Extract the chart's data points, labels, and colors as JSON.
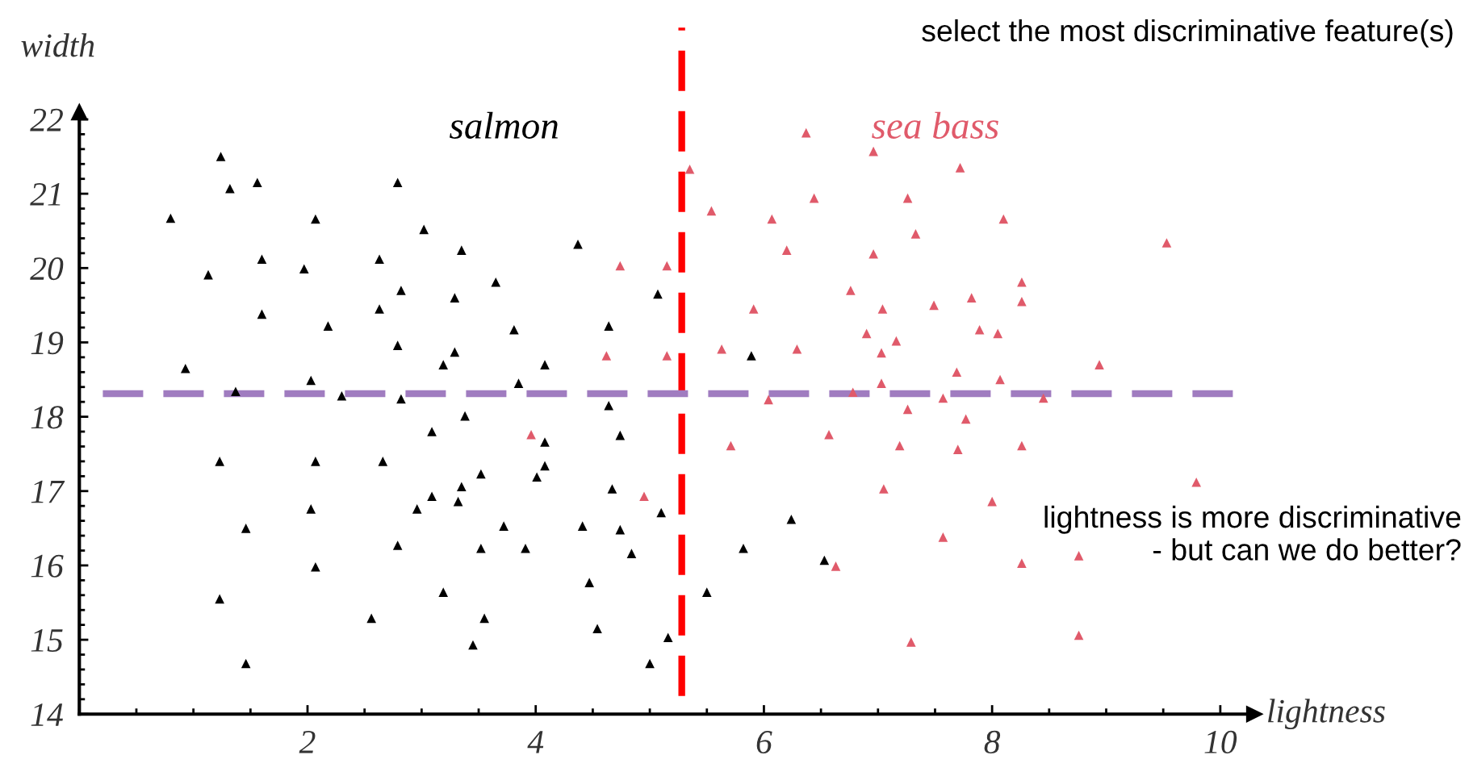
{
  "chart_data": {
    "type": "scatter",
    "title": "select the most discriminative feature(s)",
    "xlabel": "lightness",
    "ylabel": "width",
    "xlim": [
      0,
      10.3
    ],
    "ylim": [
      14,
      22.1
    ],
    "xticks": [
      2,
      4,
      6,
      8,
      10
    ],
    "yticks": [
      14,
      15,
      16,
      17,
      18,
      19,
      20,
      21,
      22
    ],
    "grid": false,
    "legend": false,
    "marker": "triangle",
    "series": [
      {
        "name": "salmon",
        "color": "#000000",
        "x": [
          1.24,
          1.32,
          1.56,
          0.8,
          1.13,
          1.6,
          1.6,
          0.93,
          1.37,
          1.23,
          1.46,
          1.23,
          1.46,
          1.97,
          2.07,
          2.18,
          2.03,
          2.3,
          2.07,
          2.03,
          2.07,
          2.56,
          2.63,
          2.63,
          2.79,
          2.82,
          2.79,
          2.82,
          2.66,
          2.79,
          3.02,
          3.09,
          2.96,
          3.09,
          3.19,
          3.35,
          3.29,
          3.29,
          3.19,
          3.38,
          3.35,
          3.32,
          3.52,
          3.52,
          3.55,
          3.45,
          3.65,
          3.81,
          3.85,
          3.72,
          3.91,
          4.08,
          4.08,
          4.08,
          4.01,
          4.37,
          4.64,
          4.64,
          4.74,
          4.67,
          4.41,
          4.74,
          4.84,
          4.47,
          4.54,
          5.07,
          5.1,
          5.16,
          5.0,
          5.89,
          5.82,
          5.5,
          6.24,
          6.53
        ],
        "values": [
          21.5,
          21.07,
          21.15,
          20.67,
          19.91,
          20.12,
          19.38,
          18.65,
          18.34,
          17.4,
          16.5,
          15.55,
          14.68,
          19.99,
          20.66,
          19.22,
          18.49,
          18.28,
          17.4,
          16.76,
          15.98,
          15.29,
          20.12,
          19.45,
          21.15,
          19.7,
          18.96,
          18.24,
          17.4,
          16.27,
          20.52,
          17.8,
          16.76,
          16.93,
          15.64,
          20.24,
          19.6,
          18.87,
          18.7,
          18.01,
          17.06,
          16.86,
          17.23,
          16.23,
          15.29,
          14.93,
          19.81,
          19.17,
          18.45,
          16.53,
          16.23,
          18.7,
          17.66,
          17.34,
          17.19,
          20.32,
          19.22,
          18.15,
          17.75,
          17.03,
          16.53,
          16.48,
          16.16,
          15.77,
          15.15,
          19.65,
          16.71,
          15.03,
          14.68,
          18.82,
          16.23,
          15.64,
          16.62,
          16.07
        ]
      },
      {
        "name": "sea bass",
        "color": "#e05a6a",
        "x": [
          5.35,
          6.37,
          5.54,
          6.07,
          6.44,
          6.2,
          6.96,
          7.72,
          7.26,
          7.33,
          8.1,
          6.96,
          9.53,
          6.76,
          7.04,
          6.9,
          7.16,
          7.03,
          7.49,
          7.82,
          7.89,
          8.05,
          8.26,
          8.26,
          5.91,
          5.63,
          6.29,
          4.74,
          5.15,
          4.62,
          5.15,
          7.03,
          7.69,
          8.07,
          8.94,
          6.04,
          6.78,
          7.57,
          8.45,
          7.26,
          7.77,
          6.57,
          5.71,
          7.19,
          7.7,
          8.26,
          3.96,
          9.79,
          7.05,
          8.0,
          4.95,
          7.57,
          6.63,
          8.26,
          8.76,
          7.29,
          8.76
        ],
        "values": [
          21.33,
          21.82,
          20.77,
          20.66,
          20.94,
          20.24,
          21.57,
          21.35,
          20.94,
          20.46,
          20.66,
          20.19,
          20.34,
          19.7,
          19.45,
          19.12,
          19.02,
          18.86,
          19.5,
          19.6,
          19.17,
          19.12,
          19.81,
          19.55,
          19.45,
          18.91,
          18.91,
          20.03,
          20.03,
          18.82,
          18.82,
          18.45,
          18.6,
          18.5,
          18.7,
          18.23,
          18.33,
          18.25,
          18.25,
          18.1,
          17.97,
          17.76,
          17.61,
          17.61,
          17.56,
          17.61,
          17.76,
          17.12,
          17.03,
          16.86,
          16.93,
          16.38,
          15.99,
          16.03,
          16.13,
          14.97,
          15.06
        ]
      }
    ],
    "ref_lines": [
      {
        "axis": "x",
        "value": 5.28,
        "color": "#ff0000",
        "line_style": "dashed"
      },
      {
        "axis": "y",
        "value": 18.31,
        "color": "#a07cc0",
        "line_style": "dashed"
      }
    ],
    "annotations": [
      "lightness is more discriminative\n- but can we do better?"
    ]
  }
}
